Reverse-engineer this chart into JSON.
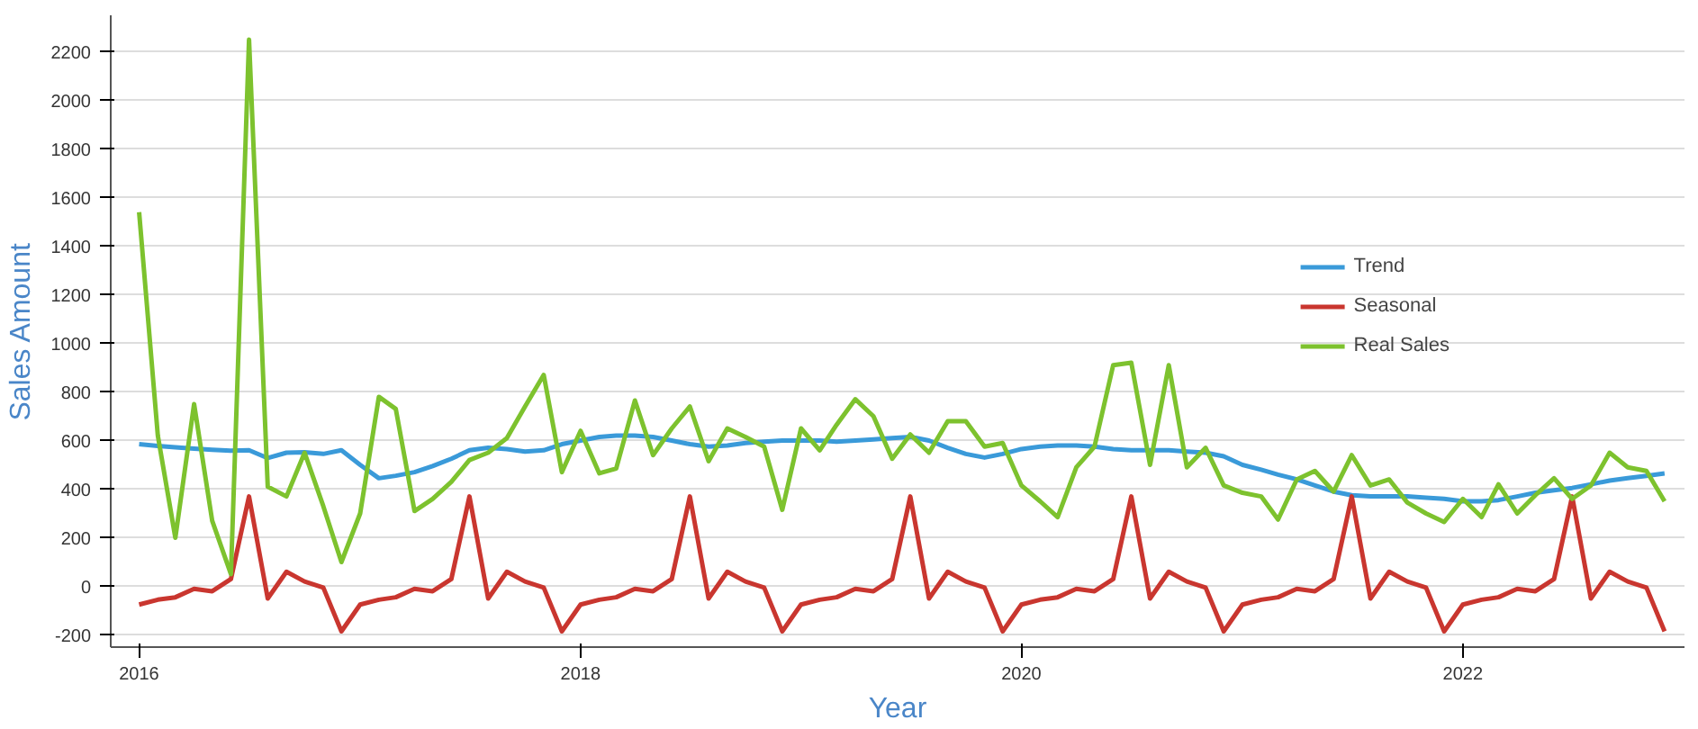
{
  "chart_data": {
    "type": "line",
    "xlabel": "Year",
    "ylabel": "Sales Amount",
    "x": [
      "2016-01",
      "2016-02",
      "2016-03",
      "2016-04",
      "2016-05",
      "2016-06",
      "2016-07",
      "2016-08",
      "2016-09",
      "2016-10",
      "2016-11",
      "2016-12",
      "2017-01",
      "2017-02",
      "2017-03",
      "2017-04",
      "2017-05",
      "2017-06",
      "2017-07",
      "2017-08",
      "2017-09",
      "2017-10",
      "2017-11",
      "2017-12",
      "2018-01",
      "2018-02",
      "2018-03",
      "2018-04",
      "2018-05",
      "2018-06",
      "2018-07",
      "2018-08",
      "2018-09",
      "2018-10",
      "2018-11",
      "2018-12",
      "2019-01",
      "2019-02",
      "2019-03",
      "2019-04",
      "2019-05",
      "2019-06",
      "2019-07",
      "2019-08",
      "2019-09",
      "2019-10",
      "2019-11",
      "2019-12",
      "2020-01",
      "2020-02",
      "2020-03",
      "2020-04",
      "2020-05",
      "2020-06",
      "2020-07",
      "2020-08",
      "2020-09",
      "2020-10",
      "2020-11",
      "2020-12",
      "2021-01",
      "2021-02",
      "2021-03",
      "2021-04",
      "2021-05",
      "2021-06",
      "2021-07",
      "2021-08",
      "2021-09",
      "2021-10",
      "2021-11",
      "2021-12",
      "2022-01",
      "2022-02",
      "2022-03",
      "2022-04",
      "2022-05",
      "2022-06",
      "2022-07",
      "2022-08",
      "2022-09",
      "2022-10",
      "2022-11",
      "2022-12"
    ],
    "series": [
      {
        "name": "Trend",
        "color": "#3a9ad9",
        "values": [
          585,
          578,
          572,
          567,
          562,
          558,
          560,
          528,
          550,
          552,
          545,
          560,
          500,
          445,
          455,
          470,
          495,
          525,
          560,
          570,
          565,
          555,
          560,
          585,
          600,
          615,
          620,
          620,
          615,
          600,
          585,
          575,
          580,
          590,
          595,
          600,
          600,
          600,
          595,
          600,
          605,
          610,
          615,
          600,
          570,
          545,
          530,
          545,
          565,
          575,
          580,
          580,
          575,
          565,
          560,
          560,
          560,
          555,
          550,
          535,
          500,
          480,
          460,
          440,
          415,
          390,
          375,
          370,
          370,
          370,
          365,
          360,
          350,
          350,
          355,
          370,
          385,
          395,
          405,
          420,
          435,
          445,
          455,
          465
        ]
      },
      {
        "name": "Seasonal",
        "color": "#c9362f",
        "values": [
          -75,
          -55,
          -45,
          -10,
          -20,
          30,
          370,
          -50,
          60,
          20,
          -5,
          -185,
          -75,
          -55,
          -45,
          -10,
          -20,
          30,
          370,
          -50,
          60,
          20,
          -5,
          -185,
          -75,
          -55,
          -45,
          -10,
          -20,
          30,
          370,
          -50,
          60,
          20,
          -5,
          -185,
          -75,
          -55,
          -45,
          -10,
          -20,
          30,
          370,
          -50,
          60,
          20,
          -5,
          -185,
          -75,
          -55,
          -45,
          -10,
          -20,
          30,
          370,
          -50,
          60,
          20,
          -5,
          -185,
          -75,
          -55,
          -45,
          -10,
          -20,
          30,
          370,
          -50,
          60,
          20,
          -5,
          -185,
          -75,
          -55,
          -45,
          -10,
          -20,
          30,
          370,
          -50,
          60,
          20,
          -5,
          -185
        ]
      },
      {
        "name": "Real Sales",
        "color": "#7dc22e",
        "values": [
          1540,
          620,
          200,
          750,
          270,
          50,
          2250,
          410,
          370,
          550,
          330,
          100,
          300,
          780,
          730,
          310,
          360,
          430,
          520,
          550,
          610,
          740,
          870,
          470,
          640,
          465,
          485,
          765,
          540,
          650,
          740,
          515,
          650,
          615,
          575,
          315,
          650,
          560,
          665,
          770,
          700,
          525,
          625,
          550,
          680,
          680,
          575,
          590,
          415,
          350,
          285,
          490,
          575,
          910,
          920,
          500,
          910,
          490,
          570,
          415,
          385,
          370,
          275,
          440,
          475,
          390,
          540,
          415,
          440,
          345,
          300,
          265,
          360,
          285,
          420,
          300,
          375,
          445,
          360,
          415,
          550,
          490,
          475,
          350
        ]
      }
    ],
    "xlim": [
      "2015-11-15",
      "2023-01-03"
    ],
    "xticks": [
      {
        "value": "2016-01-01",
        "label": "2016"
      },
      {
        "value": "2018-01-01",
        "label": "2018"
      },
      {
        "value": "2020-01-01",
        "label": "2020"
      },
      {
        "value": "2022-01-01",
        "label": "2022"
      }
    ],
    "ylim": [
      -250,
      2350
    ],
    "yticks": [
      -200,
      0,
      200,
      400,
      600,
      800,
      1000,
      1200,
      1400,
      1600,
      1800,
      2000,
      2200
    ],
    "grid": "y",
    "legend": "top right",
    "marker": "none",
    "line_style": "solid"
  }
}
